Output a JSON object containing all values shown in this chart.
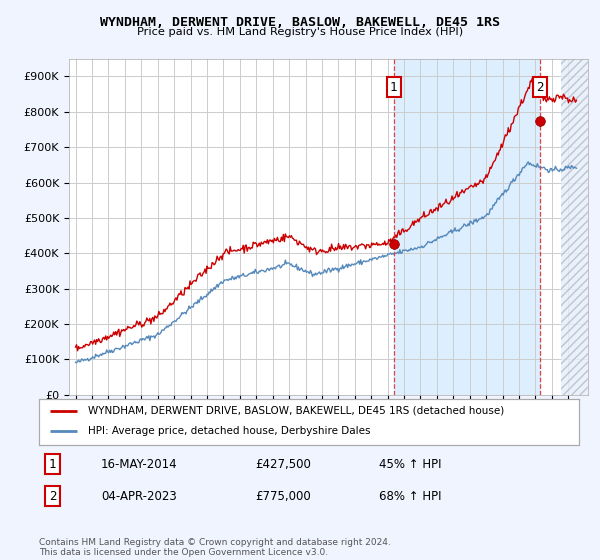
{
  "title": "WYNDHAM, DERWENT DRIVE, BASLOW, BAKEWELL, DE45 1RS",
  "subtitle": "Price paid vs. HM Land Registry's House Price Index (HPI)",
  "ylabel_ticks": [
    "£0",
    "£100K",
    "£200K",
    "£300K",
    "£400K",
    "£500K",
    "£600K",
    "£700K",
    "£800K",
    "£900K"
  ],
  "ytick_values": [
    0,
    100000,
    200000,
    300000,
    400000,
    500000,
    600000,
    700000,
    800000,
    900000
  ],
  "ylim": [
    0,
    950000
  ],
  "xlim_start": 1994.6,
  "xlim_end": 2026.2,
  "red_color": "#cc0000",
  "blue_color": "#5588bb",
  "dashed_color": "#dd4444",
  "marker1_x": 2014.37,
  "marker1_y": 427500,
  "marker2_x": 2023.27,
  "marker2_y": 775000,
  "shade_start": 2014.37,
  "shade_end": 2023.27,
  "hatch_start": 2024.55,
  "hatch_end": 2026.2,
  "legend1_text": "WYNDHAM, DERWENT DRIVE, BASLOW, BAKEWELL, DE45 1RS (detached house)",
  "legend2_text": "HPI: Average price, detached house, Derbyshire Dales",
  "ann1_date": "16-MAY-2014",
  "ann1_price": "£427,500",
  "ann1_hpi": "45% ↑ HPI",
  "ann2_date": "04-APR-2023",
  "ann2_price": "£775,000",
  "ann2_hpi": "68% ↑ HPI",
  "footer": "Contains HM Land Registry data © Crown copyright and database right 2024.\nThis data is licensed under the Open Government Licence v3.0.",
  "bg_color": "#f0f4ff",
  "plot_bg": "#ffffff",
  "shade_color": "#ddeeff",
  "hatch_color": "#e8eef8"
}
